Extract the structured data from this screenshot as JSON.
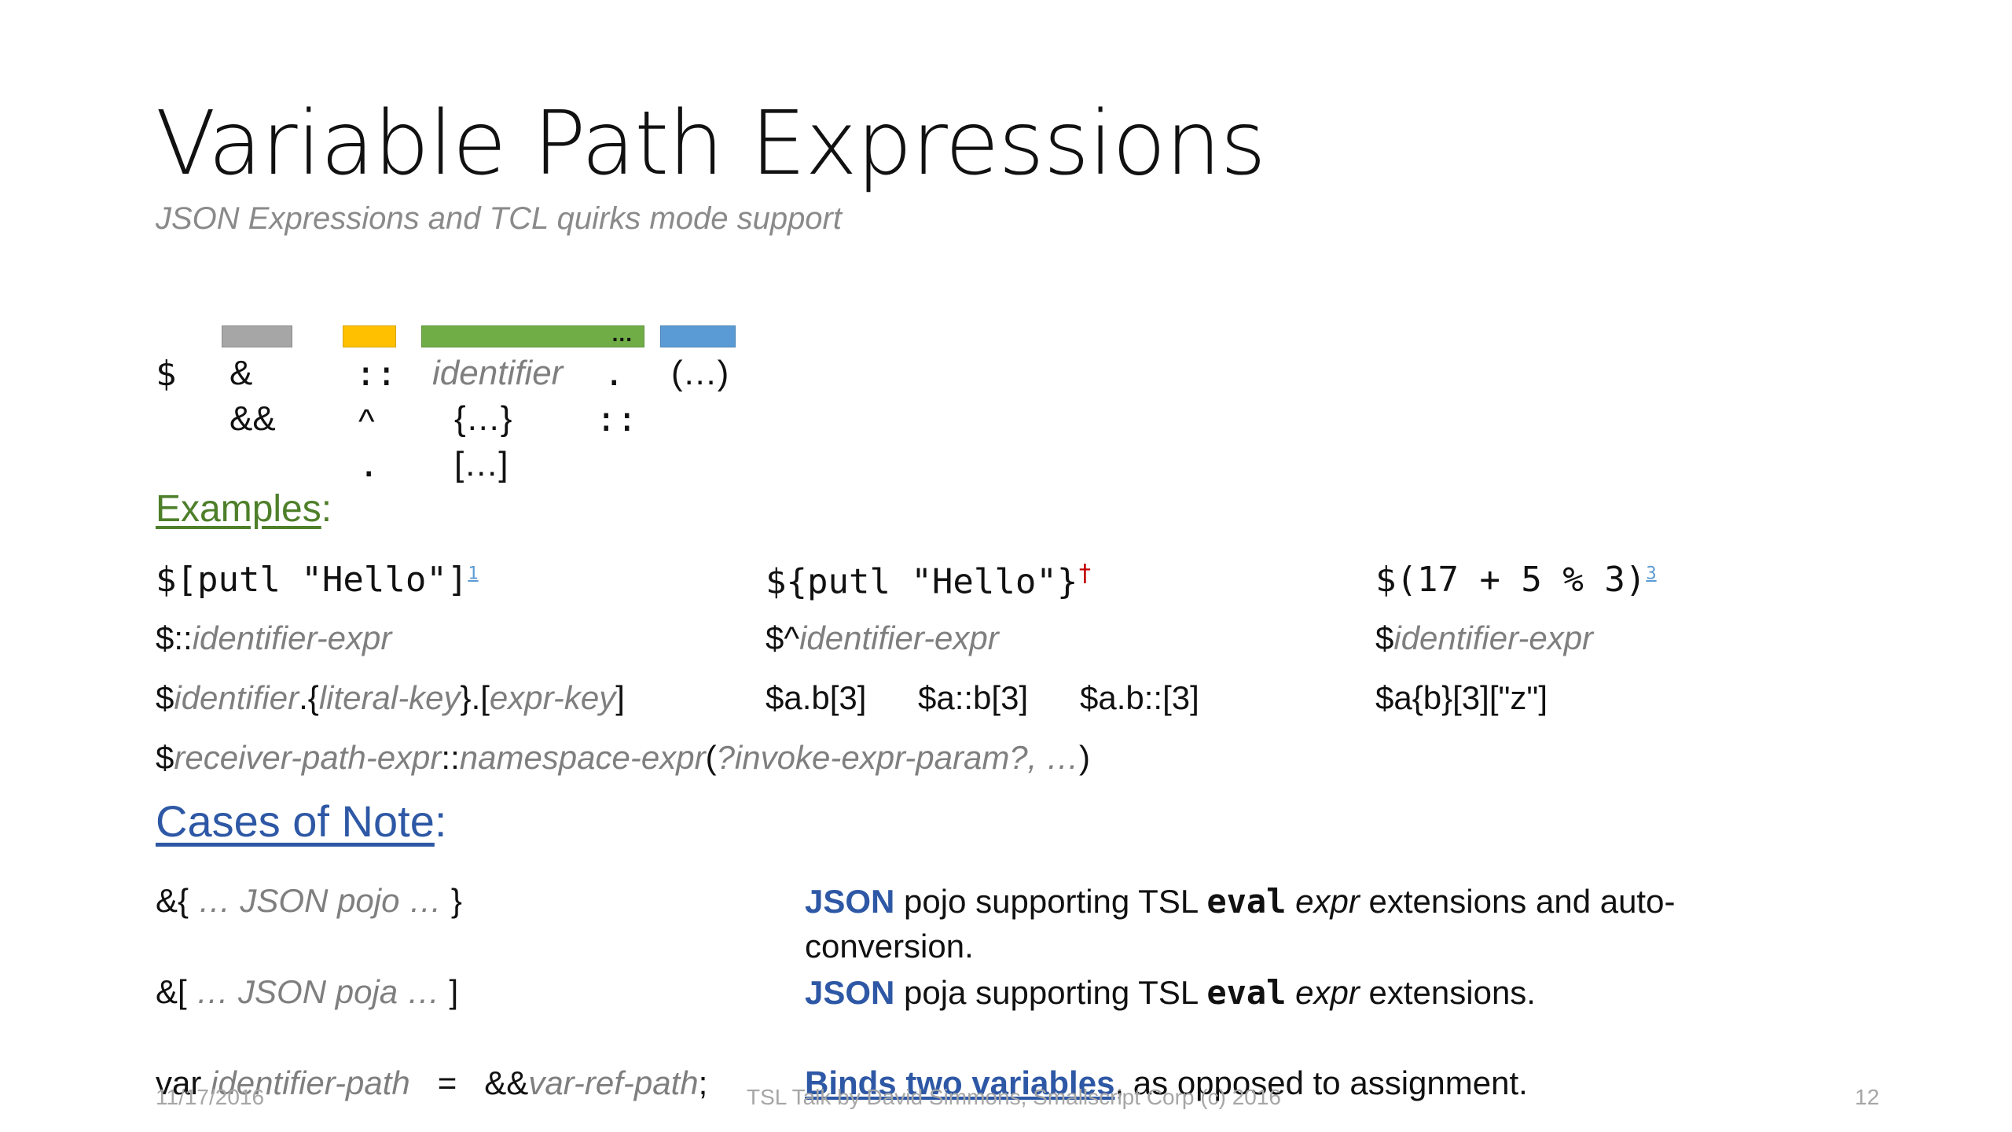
{
  "slide": {
    "title": "Variable Path Expressions",
    "subtitle": "JSON Expressions and TCL quirks mode support"
  },
  "legend_bars": [
    {
      "color": "#a6a6a6",
      "label": ""
    },
    {
      "color": "#ffc000",
      "label": ""
    },
    {
      "color": "#70ad47",
      "label": "..."
    },
    {
      "color": "#5b9bd5",
      "label": ""
    }
  ],
  "syntax": {
    "dollar": "$",
    "col1": [
      "&",
      "&&"
    ],
    "col2": [
      "::",
      "^",
      "."
    ],
    "col3": [
      "identifier",
      "{…}",
      "[…]"
    ],
    "col4": [
      ".",
      "::"
    ],
    "col5": [
      "(…)"
    ]
  },
  "examples": {
    "heading": "Examples",
    "colon": ":",
    "row1": {
      "a": "$[putl \"Hello\"]",
      "a_sup": "1",
      "b": "${putl \"Hello\"}",
      "b_sup": "†",
      "c": "$(17 + 5 % 3)",
      "c_sup": "3"
    },
    "row2": {
      "a_prefix": "$::",
      "a_it": "identifier-expr",
      "b_prefix": "$^",
      "b_it": "identifier-expr",
      "c_prefix": "$",
      "c_it": "identifier-expr"
    },
    "row3": {
      "a_p1": "$",
      "a_i1": "identifier",
      "a_p2": ".{",
      "a_i2": "literal-key",
      "a_p3": "}.[",
      "a_i3": "expr-key",
      "a_p4": "]",
      "b1": "$a.b[3]",
      "b2": "$a::b[3]",
      "b3": "$a.b::[3]",
      "c": "$a{b}[3][\"z\"]"
    },
    "row4": {
      "p1": "$",
      "i1": "receiver-path-expr",
      "p2": "::",
      "i2": "namespace-expr",
      "p3": "(",
      "i3": "?invoke-expr-param?, …",
      "p4": ")"
    }
  },
  "cases": {
    "heading": "Cases of Note",
    "colon": ":",
    "items": [
      {
        "left_p1": "&{ ",
        "left_it": "… JSON pojo …",
        "left_p2": " }",
        "json": "JSON",
        "text1": " pojo supporting TSL ",
        "eval": "eval",
        "expr": "expr",
        "text2": " extensions and auto-",
        "line2": "conversion."
      },
      {
        "left_p1": "&[ ",
        "left_it": "… JSON poja …",
        "left_p2": " ]",
        "json": "JSON",
        "text1": " poja supporting TSL ",
        "eval": "eval",
        "expr": "expr",
        "text2": " extensions."
      }
    ],
    "var_row": {
      "kw": "var ",
      "it1": "identifier-path",
      "eq": "   =   &&",
      "it2": "var-ref-path",
      "semi": ";",
      "bind": "Binds two variables",
      "rest": ", as opposed to assignment."
    }
  },
  "footer": {
    "date": "11/17/2016",
    "center": "TSL Talk by David Simmons, Smallscript Corp (c) 2016",
    "page": "12"
  }
}
